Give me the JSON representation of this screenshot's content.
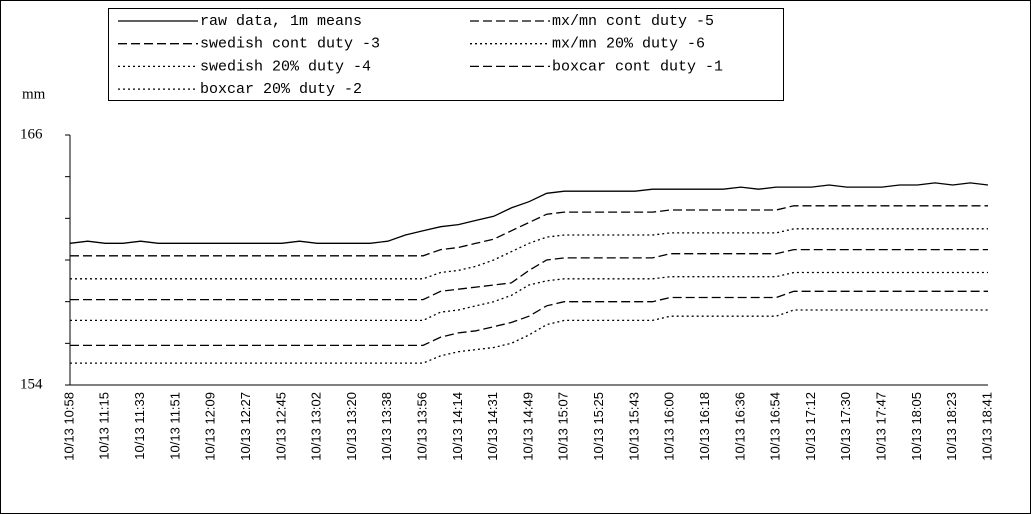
{
  "chart_data": {
    "type": "line",
    "ylabel": "mm",
    "ylim": [
      154,
      166
    ],
    "yticks": [
      154,
      166
    ],
    "yminor_ticks": [
      156,
      158,
      160,
      162,
      164
    ],
    "categories": [
      "10/13 10:58",
      null,
      "10/13 11:15",
      null,
      "10/13 11:33",
      null,
      "10/13 11:51",
      null,
      "10/13 12:09",
      null,
      "10/13 12:27",
      null,
      "10/13 12:45",
      null,
      "10/13 13:02",
      null,
      "10/13 13:20",
      null,
      "10/13 13:38",
      null,
      "10/13 13:56",
      null,
      "10/13 14:14",
      null,
      "10/13 14:31",
      null,
      "10/13 14:49",
      null,
      "10/13 15:07",
      null,
      "10/13 15:25",
      null,
      "10/13 15:43",
      null,
      "10/13 16:00",
      null,
      "10/13 16:18",
      null,
      "10/13 16:36",
      null,
      "10/13 16:54",
      null,
      "10/13 17:12",
      null,
      "10/13 17:30",
      null,
      "10/13 17:47",
      null,
      "10/13 18:05",
      null,
      "10/13 18:23",
      null,
      "10/13 18:41"
    ],
    "series": [
      {
        "name": "raw data, 1m means",
        "color": "#000000",
        "style": "solid",
        "values": [
          160.8,
          160.9,
          160.8,
          160.8,
          160.9,
          160.8,
          160.8,
          160.8,
          160.8,
          160.8,
          160.8,
          160.8,
          160.8,
          160.9,
          160.8,
          160.8,
          160.8,
          160.8,
          160.9,
          161.2,
          161.4,
          161.6,
          161.7,
          161.9,
          162.1,
          162.5,
          162.8,
          163.2,
          163.3,
          163.3,
          163.3,
          163.3,
          163.3,
          163.4,
          163.4,
          163.4,
          163.4,
          163.4,
          163.5,
          163.4,
          163.5,
          163.5,
          163.5,
          163.6,
          163.5,
          163.5,
          163.5,
          163.6,
          163.6,
          163.7,
          163.6,
          163.7,
          163.6
        ]
      },
      {
        "name": "mx/mn cont duty -5",
        "color": "#000000",
        "style": "dashed",
        "values": [
          160.2,
          160.2,
          160.2,
          160.2,
          160.2,
          160.2,
          160.2,
          160.2,
          160.2,
          160.2,
          160.2,
          160.2,
          160.2,
          160.2,
          160.2,
          160.2,
          160.2,
          160.2,
          160.2,
          160.2,
          160.2,
          160.5,
          160.6,
          160.8,
          161.0,
          161.4,
          161.8,
          162.2,
          162.3,
          162.3,
          162.3,
          162.3,
          162.3,
          162.3,
          162.4,
          162.4,
          162.4,
          162.4,
          162.4,
          162.4,
          162.4,
          162.6,
          162.6,
          162.6,
          162.6,
          162.6,
          162.6,
          162.6,
          162.6,
          162.6,
          162.6,
          162.6,
          162.6
        ]
      },
      {
        "name": "swedish cont duty -3",
        "color": "#000000",
        "style": "dashed",
        "values": [
          158.1,
          158.1,
          158.1,
          158.1,
          158.1,
          158.1,
          158.1,
          158.1,
          158.1,
          158.1,
          158.1,
          158.1,
          158.1,
          158.1,
          158.1,
          158.1,
          158.1,
          158.1,
          158.1,
          158.1,
          158.1,
          158.5,
          158.6,
          158.7,
          158.8,
          158.9,
          159.5,
          160.0,
          160.1,
          160.1,
          160.1,
          160.1,
          160.1,
          160.1,
          160.3,
          160.3,
          160.3,
          160.3,
          160.3,
          160.3,
          160.3,
          160.5,
          160.5,
          160.5,
          160.5,
          160.5,
          160.5,
          160.5,
          160.5,
          160.5,
          160.5,
          160.5,
          160.5
        ]
      },
      {
        "name": "mx/mn 20% duty -6",
        "color": "#000000",
        "style": "dotted",
        "values": [
          159.1,
          159.1,
          159.1,
          159.1,
          159.1,
          159.1,
          159.1,
          159.1,
          159.1,
          159.1,
          159.1,
          159.1,
          159.1,
          159.1,
          159.1,
          159.1,
          159.1,
          159.1,
          159.1,
          159.1,
          159.1,
          159.4,
          159.5,
          159.7,
          160.0,
          160.4,
          160.8,
          161.1,
          161.2,
          161.2,
          161.2,
          161.2,
          161.2,
          161.2,
          161.3,
          161.3,
          161.3,
          161.3,
          161.3,
          161.3,
          161.3,
          161.5,
          161.5,
          161.5,
          161.5,
          161.5,
          161.5,
          161.5,
          161.5,
          161.5,
          161.5,
          161.5,
          161.5
        ]
      },
      {
        "name": "swedish 20% duty -4",
        "color": "#000000",
        "style": "dotted",
        "values": [
          157.1,
          157.1,
          157.1,
          157.1,
          157.1,
          157.1,
          157.1,
          157.1,
          157.1,
          157.1,
          157.1,
          157.1,
          157.1,
          157.1,
          157.1,
          157.1,
          157.1,
          157.1,
          157.1,
          157.1,
          157.1,
          157.5,
          157.6,
          157.8,
          158.0,
          158.3,
          158.8,
          159.0,
          159.1,
          159.1,
          159.1,
          159.1,
          159.1,
          159.1,
          159.2,
          159.2,
          159.2,
          159.2,
          159.2,
          159.2,
          159.2,
          159.4,
          159.4,
          159.4,
          159.4,
          159.4,
          159.4,
          159.4,
          159.4,
          159.4,
          159.4,
          159.4,
          159.4
        ]
      },
      {
        "name": "boxcar cont duty -1",
        "color": "#000000",
        "style": "dashed",
        "values": [
          155.9,
          155.9,
          155.9,
          155.9,
          155.9,
          155.9,
          155.9,
          155.9,
          155.9,
          155.9,
          155.9,
          155.9,
          155.9,
          155.9,
          155.9,
          155.9,
          155.9,
          155.9,
          155.9,
          155.9,
          155.9,
          156.3,
          156.5,
          156.6,
          156.8,
          157.0,
          157.3,
          157.8,
          158.0,
          158.0,
          158.0,
          158.0,
          158.0,
          158.0,
          158.2,
          158.2,
          158.2,
          158.2,
          158.2,
          158.2,
          158.2,
          158.5,
          158.5,
          158.5,
          158.5,
          158.5,
          158.5,
          158.5,
          158.5,
          158.5,
          158.5,
          158.5,
          158.5
        ]
      },
      {
        "name": "boxcar 20% duty -2",
        "color": "#000000",
        "style": "dotted",
        "values": [
          155.05,
          155.05,
          155.05,
          155.05,
          155.05,
          155.05,
          155.05,
          155.05,
          155.05,
          155.05,
          155.05,
          155.05,
          155.05,
          155.05,
          155.05,
          155.05,
          155.05,
          155.05,
          155.05,
          155.05,
          155.05,
          155.4,
          155.6,
          155.7,
          155.8,
          156.0,
          156.4,
          156.9,
          157.1,
          157.1,
          157.1,
          157.1,
          157.1,
          157.1,
          157.3,
          157.3,
          157.3,
          157.3,
          157.3,
          157.3,
          157.3,
          157.6,
          157.6,
          157.6,
          157.6,
          157.6,
          157.6,
          157.6,
          157.6,
          157.6,
          157.6,
          157.6,
          157.6
        ]
      }
    ]
  }
}
